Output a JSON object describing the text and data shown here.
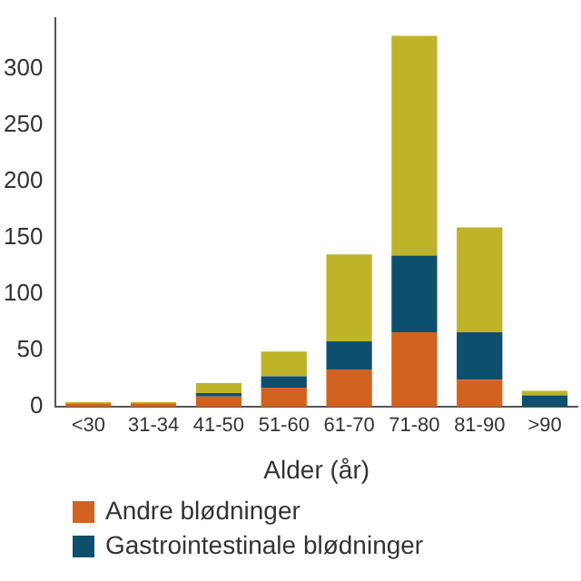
{
  "chart_data": {
    "type": "bar",
    "stacked": true,
    "xlabel": "Alder (år)",
    "categories": [
      "<30",
      "31-34",
      "41-50",
      "51-60",
      "61-70",
      "71-80",
      "81-90",
      ">90"
    ],
    "series": [
      {
        "name": "Andre blødninger",
        "color": "#d2621f",
        "values": [
          3,
          3,
          9,
          17,
          33,
          66,
          24,
          0
        ]
      },
      {
        "name": "Gastrointestinale blødninger",
        "color": "#0f4f6e",
        "values": [
          0,
          0,
          3,
          10,
          25,
          68,
          42,
          10
        ]
      },
      {
        "color": "#bfb32a",
        "values": [
          1,
          1,
          9,
          22,
          77,
          195,
          93,
          4
        ]
      }
    ],
    "ylim": [
      0,
      345
    ],
    "yticks": [
      0,
      50,
      100,
      150,
      200,
      250,
      300
    ],
    "grid": false,
    "legend": "bottom"
  }
}
